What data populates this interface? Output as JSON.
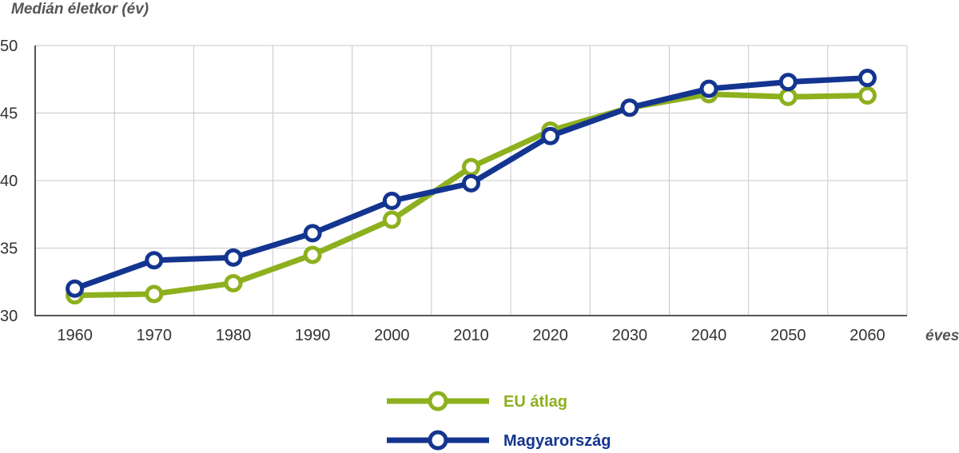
{
  "chart_data": {
    "type": "line",
    "ylabel": "Medián életkor (év)",
    "xlabel": "éves",
    "x": [
      "1960",
      "1970",
      "1980",
      "1990",
      "2000",
      "2010",
      "2020",
      "2030",
      "2040",
      "2050",
      "2060"
    ],
    "ylim": [
      30,
      50
    ],
    "yticks": [
      "30",
      "35",
      "40",
      "45",
      "50"
    ],
    "grid": true,
    "legend_position": "bottom-center",
    "series": [
      {
        "name": "EU átlag",
        "color": "#8db01e",
        "values": [
          31.5,
          31.6,
          32.4,
          34.5,
          37.1,
          41.0,
          43.7,
          45.4,
          46.4,
          46.2,
          46.3
        ]
      },
      {
        "name": "Magyarország",
        "color": "#14358f",
        "values": [
          32.0,
          34.1,
          34.3,
          36.1,
          38.5,
          39.8,
          43.3,
          45.4,
          46.8,
          47.3,
          47.6
        ]
      }
    ]
  }
}
